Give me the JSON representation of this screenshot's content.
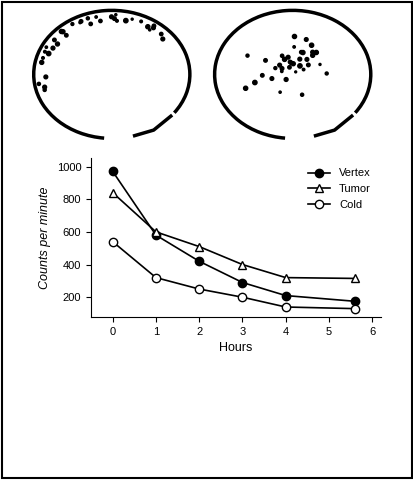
{
  "chart_data": {
    "type": "line",
    "x_label": "Hours",
    "y_label": "Counts per minute",
    "x": [
      0,
      1,
      2,
      3,
      4,
      5.6
    ],
    "series": [
      {
        "name": "Vertex",
        "color": "#000000",
        "marker": "filled_circle",
        "line_style": "solid",
        "values": [
          970,
          580,
          420,
          290,
          210,
          175
        ]
      },
      {
        "name": "Tumor",
        "color": "#000000",
        "marker": "open_triangle",
        "line_style": "solid",
        "values": [
          840,
          600,
          510,
          400,
          320,
          315
        ]
      },
      {
        "name": "Cold",
        "color": "#000000",
        "marker": "open_circle",
        "line_style": "solid",
        "values": [
          540,
          320,
          250,
          200,
          140,
          130
        ]
      }
    ],
    "xlim": [
      -0.5,
      6.2
    ],
    "xticks": [
      0,
      1,
      2,
      3,
      4,
      5,
      6
    ],
    "ylim": [
      80,
      1050
    ],
    "yticks": [
      200,
      400,
      600,
      800,
      1000
    ],
    "grid": false,
    "legend": "upper right"
  }
}
